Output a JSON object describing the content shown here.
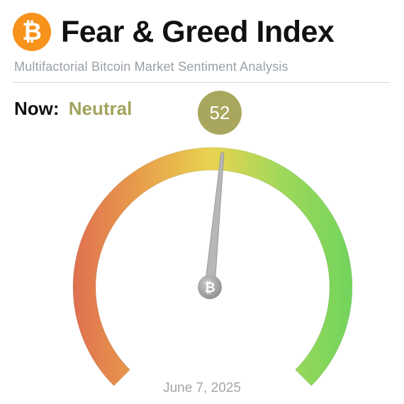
{
  "header": {
    "icon": "bitcoin-icon",
    "icon_glyph": "₿",
    "title": "Fear & Greed Index",
    "subtitle": "Multifactorial Bitcoin Market Sentiment Analysis"
  },
  "status": {
    "now_label": "Now:",
    "now_value": "Neutral",
    "value": "52",
    "value_color": "#a9a75e",
    "now_value_color": "#a3a35e"
  },
  "gauge": {
    "value": 52,
    "min": 0,
    "max": 100,
    "colors": [
      "#e07050",
      "#e8a04a",
      "#e8d450",
      "#9fd85a",
      "#72d45c"
    ],
    "needle_hub_icon": "bitcoin-icon",
    "hub_glyph": "₿"
  },
  "footer": {
    "date": "June 7, 2025"
  }
}
